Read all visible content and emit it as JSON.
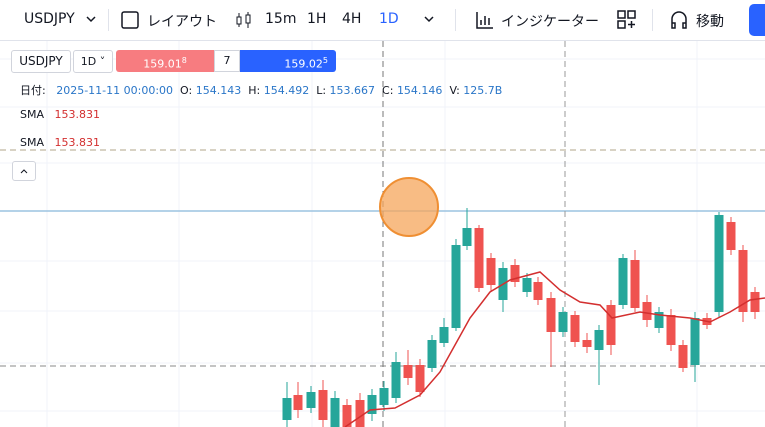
{
  "toolbar": {
    "symbol": "USDJPY",
    "layout": "レイアウト",
    "intervals": [
      "15m",
      "1H",
      "4H",
      "1D"
    ],
    "indicators": "インジケーター",
    "move": "移動"
  },
  "legend": {
    "symbol": "USDJPY",
    "interval": "1D",
    "sell": {
      "price": "159.01",
      "pip": "8"
    },
    "spread": "7",
    "buy": {
      "price": "159.02",
      "pip": "5"
    },
    "ohlc": {
      "date_label": "日付:",
      "date": "2025-11-11 00:00:00",
      "open_label": "O:",
      "open": "154.143",
      "high_label": "H:",
      "high": "154.492",
      "low_label": "L:",
      "low": "153.667",
      "close_label": "C:",
      "close": "154.146",
      "volume_label": "V:",
      "volume": "125.7B"
    },
    "indicators": [
      {
        "name": "SMA",
        "value": "153.831"
      },
      {
        "name": "SMA",
        "value": "153.831"
      }
    ]
  }
}
